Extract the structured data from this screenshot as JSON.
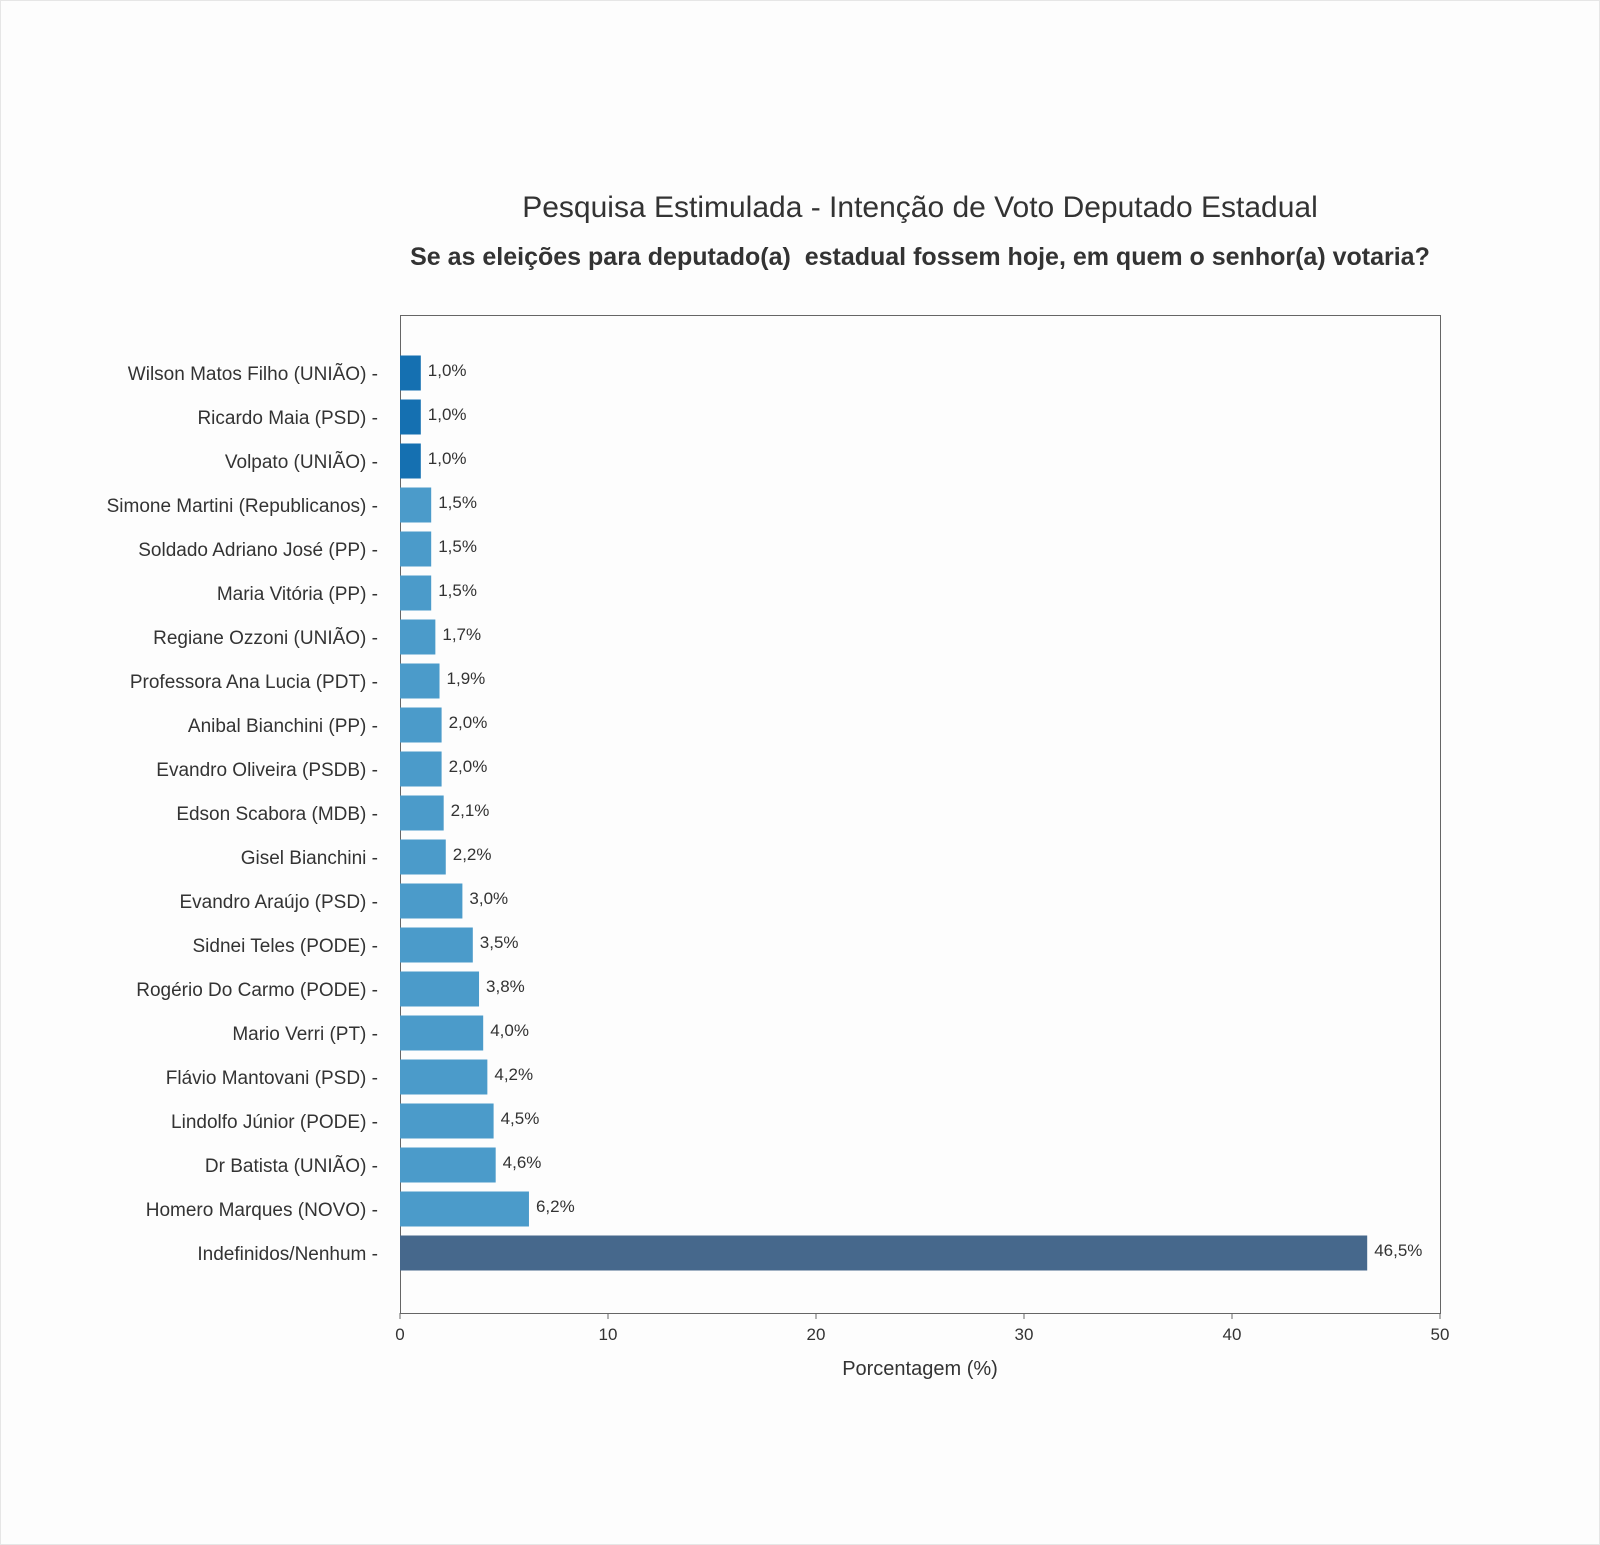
{
  "chart_data": {
    "type": "bar",
    "orientation": "horizontal",
    "title": "Pesquisa Estimulada - Intenção de Voto Deputado Estadual",
    "subtitle": "Se as eleições para deputado(a)  estadual fossem hoje, em quem o senhor(a) votaria?",
    "xlabel": "Porcentagem (%)",
    "ylabel": "",
    "xlim": [
      0,
      50
    ],
    "xticks": [
      0,
      10,
      20,
      30,
      40,
      50
    ],
    "grid": false,
    "legend": "none",
    "category_suffix": " -",
    "categories": [
      "Wilson Matos Filho (UNIÃO)",
      "Ricardo Maia (PSD)",
      "Volpato (UNIÃO)",
      "Simone Martini (Republicanos)",
      "Soldado Adriano José (PP)",
      "Maria Vitória (PP)",
      "Regiane Ozzoni (UNIÃO)",
      "Professora Ana Lucia (PDT)",
      "Anibal Bianchini (PP)",
      "Evandro Oliveira (PSDB)",
      "Edson Scabora (MDB)",
      "Gisel Bianchini",
      "Evandro Araújo (PSD)",
      "Sidnei Teles (PODE)",
      "Rogério Do Carmo (PODE)",
      "Mario Verri (PT)",
      "Flávio Mantovani (PSD)",
      "Lindolfo Júnior (PODE)",
      "Dr Batista (UNIÃO)",
      "Homero Marques (NOVO)",
      "Indefinidos/Nenhum"
    ],
    "values": [
      1.0,
      1.0,
      1.0,
      1.5,
      1.5,
      1.5,
      1.7,
      1.9,
      2.0,
      2.0,
      2.1,
      2.2,
      3.0,
      3.5,
      3.8,
      4.0,
      4.2,
      4.5,
      4.6,
      6.2,
      46.5
    ],
    "data_labels": [
      "1,0%",
      "1,0%",
      "1,0%",
      "1,5%",
      "1,5%",
      "1,5%",
      "1,7%",
      "1,9%",
      "2,0%",
      "2,0%",
      "2,1%",
      "2,2%",
      "3,0%",
      "3,5%",
      "3,8%",
      "4,0%",
      "4,2%",
      "4,5%",
      "4,6%",
      "6,2%",
      "46,5%"
    ],
    "bar_colors": [
      "#1570b1",
      "#1570b1",
      "#1570b1",
      "#4b9bca",
      "#4b9bca",
      "#4b9bca",
      "#4b9bca",
      "#4b9bca",
      "#4b9bca",
      "#4b9bca",
      "#4b9bca",
      "#4b9bca",
      "#4b9bca",
      "#4b9bca",
      "#4b9bca",
      "#4b9bca",
      "#4b9bca",
      "#4b9bca",
      "#4b9bca",
      "#4b9bca",
      "#46688c"
    ],
    "axis_color": "#666666",
    "text_color": "#333333"
  }
}
